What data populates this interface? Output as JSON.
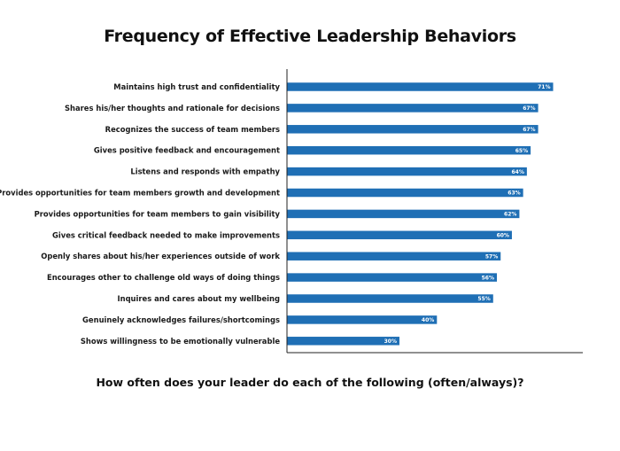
{
  "chart_data": {
    "type": "bar",
    "orientation": "horizontal",
    "title": "Frequency of Effective Leadership Behaviors",
    "xlabel": "How often does your leader do each of the following (often/always)?",
    "ylabel": "",
    "xlim": [
      0,
      100
    ],
    "grid": false,
    "bar_color": "#1f6fb5",
    "categories": [
      "Maintains high trust and confidentiality",
      "Shares his/her thoughts and rationale for decisions",
      "Recognizes the success of team members",
      "Gives positive feedback and encouragement",
      "Listens and responds with empathy",
      "Provides opportunities for team members growth and development",
      "Provides opportunities for team members to gain visibility",
      "Gives critical feedback needed to make improvements",
      "Openly shares about his/her experiences outside of work",
      "Encourages other to challenge old ways of doing things",
      "Inquires and cares about my wellbeing",
      "Genuinely acknowledges failures/shortcomings",
      "Shows willingness to be emotionally vulnerable"
    ],
    "values": [
      71,
      67,
      67,
      65,
      64,
      63,
      62,
      60,
      57,
      56,
      55,
      40,
      30
    ],
    "value_labels": [
      "71%",
      "67%",
      "67%",
      "65%",
      "64%",
      "63%",
      "62%",
      "60%",
      "57%",
      "56%",
      "55%",
      "40%",
      "30%"
    ]
  }
}
